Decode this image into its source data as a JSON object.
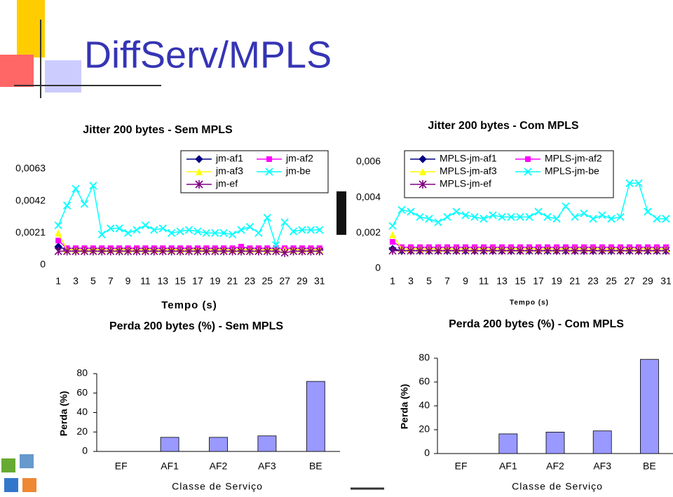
{
  "title": "DiffServ/MPLS",
  "chart_data": [
    {
      "type": "line",
      "title": "Jitter 200 bytes - Sem MPLS",
      "x_label": "Tempo (s)",
      "categories": [
        1,
        null,
        3,
        null,
        5,
        null,
        7,
        null,
        9,
        null,
        11,
        null,
        13,
        null,
        15,
        null,
        17,
        null,
        19,
        null,
        21,
        null,
        23,
        null,
        25,
        null,
        27,
        null,
        29,
        null,
        31
      ],
      "ylim": [
        0,
        0.0063
      ],
      "yticks": [
        0,
        {
          "value": 0.0021,
          "label": "0,0021"
        },
        {
          "value": 0.0042,
          "label": "0,0042"
        },
        {
          "value": 0.0063,
          "label": "0,0063"
        }
      ],
      "series": [
        {
          "name": "jm-af1",
          "color": "#000080",
          "marker": "diamond",
          "values": [
            0.0012,
            0.001,
            0.001,
            0.001,
            0.001,
            0.001,
            0.001,
            0.001,
            0.001,
            0.001,
            0.001,
            0.001,
            0.001,
            0.001,
            0.001,
            0.001,
            0.001,
            0.001,
            0.001,
            0.001,
            0.001,
            0.001,
            0.001,
            0.001,
            0.001,
            0.001,
            0.001,
            0.001,
            0.001,
            0.001,
            0.001
          ]
        },
        {
          "name": "jm-af2",
          "color": "#ff00ff",
          "marker": "square",
          "values": [
            0.0016,
            0.0011,
            0.0011,
            0.0011,
            0.0011,
            0.0011,
            0.0011,
            0.0011,
            0.0011,
            0.0011,
            0.0011,
            0.0011,
            0.0011,
            0.0011,
            0.0011,
            0.0011,
            0.0011,
            0.0011,
            0.0011,
            0.0011,
            0.0011,
            0.0012,
            0.0011,
            0.0011,
            0.0011,
            0.0011,
            0.0011,
            0.0011,
            0.0011,
            0.0011,
            0.0011
          ]
        },
        {
          "name": "jm-af3",
          "color": "#ffff00",
          "marker": "triangle",
          "values": [
            0.0021,
            0.001,
            0.001,
            0.001,
            0.001,
            0.001,
            0.001,
            0.001,
            0.001,
            0.001,
            0.001,
            0.001,
            0.001,
            0.001,
            0.001,
            0.001,
            0.001,
            0.001,
            0.001,
            0.001,
            0.001,
            0.001,
            0.001,
            0.001,
            0.001,
            0.001,
            0.001,
            0.001,
            0.001,
            0.001,
            0.001
          ]
        },
        {
          "name": "jm-be",
          "color": "#00ffff",
          "marker": "x",
          "values": [
            0.0026,
            0.0039,
            0.005,
            0.004,
            0.0052,
            0.002,
            0.0024,
            0.0024,
            0.0021,
            0.0023,
            0.0026,
            0.0023,
            0.0024,
            0.0021,
            0.0022,
            0.0023,
            0.0022,
            0.0021,
            0.0021,
            0.0021,
            0.002,
            0.0023,
            0.0025,
            0.0021,
            0.0031,
            0.0013,
            0.0028,
            0.0022,
            0.0023,
            0.0023,
            0.0023
          ]
        },
        {
          "name": "jm-ef",
          "color": "#800080",
          "marker": "star",
          "values": [
            0.0009,
            0.0009,
            0.0009,
            0.0009,
            0.0009,
            0.0009,
            0.0009,
            0.0009,
            0.0009,
            0.0009,
            0.0009,
            0.0009,
            0.0009,
            0.0009,
            0.0009,
            0.0009,
            0.0009,
            0.0009,
            0.0009,
            0.0009,
            0.0009,
            0.0009,
            0.0009,
            0.0009,
            0.0009,
            0.0009,
            0.0008,
            0.0009,
            0.0009,
            0.0009,
            0.0009
          ]
        }
      ]
    },
    {
      "type": "line",
      "title": "Jitter 200 bytes - Com MPLS",
      "x_label": "Tempo (s)",
      "categories": [
        1,
        null,
        3,
        null,
        5,
        null,
        7,
        null,
        9,
        null,
        11,
        null,
        13,
        null,
        15,
        null,
        17,
        null,
        19,
        null,
        21,
        null,
        23,
        null,
        25,
        null,
        27,
        null,
        29,
        null,
        31
      ],
      "ylim": [
        0,
        0.006
      ],
      "yticks": [
        0,
        {
          "value": 0.002,
          "label": "0,002"
        },
        {
          "value": 0.004,
          "label": "0,004"
        },
        {
          "value": 0.006,
          "label": "0,006"
        }
      ],
      "series": [
        {
          "name": "MPLS-jm-af1",
          "color": "#000080",
          "marker": "diamond",
          "values": [
            0.0011,
            0.001,
            0.001,
            0.001,
            0.001,
            0.001,
            0.001,
            0.001,
            0.001,
            0.001,
            0.001,
            0.001,
            0.001,
            0.001,
            0.001,
            0.001,
            0.001,
            0.001,
            0.001,
            0.001,
            0.001,
            0.001,
            0.001,
            0.001,
            0.001,
            0.001,
            0.001,
            0.001,
            0.001,
            0.001,
            0.001
          ]
        },
        {
          "name": "MPLS-jm-af2",
          "color": "#ff00ff",
          "marker": "square",
          "values": [
            0.0015,
            0.0012,
            0.0012,
            0.0012,
            0.0012,
            0.0012,
            0.0012,
            0.0012,
            0.0012,
            0.0012,
            0.0012,
            0.0012,
            0.0012,
            0.0012,
            0.0012,
            0.0012,
            0.0012,
            0.0012,
            0.0012,
            0.0012,
            0.0012,
            0.0012,
            0.0012,
            0.0012,
            0.0012,
            0.0012,
            0.0012,
            0.0012,
            0.0012,
            0.0012,
            0.0012
          ]
        },
        {
          "name": "MPLS-jm-af3",
          "color": "#ffff00",
          "marker": "triangle",
          "values": [
            0.0019,
            0.0011,
            0.0011,
            0.0011,
            0.0011,
            0.0011,
            0.0011,
            0.0011,
            0.0011,
            0.0011,
            0.0011,
            0.0011,
            0.0011,
            0.0011,
            0.0011,
            0.0011,
            0.0011,
            0.0011,
            0.0011,
            0.0011,
            0.0011,
            0.0011,
            0.0011,
            0.0011,
            0.0011,
            0.0011,
            0.0011,
            0.0011,
            0.0011,
            0.0011,
            0.0011
          ]
        },
        {
          "name": "MPLS-jm-be",
          "color": "#00ffff",
          "marker": "x",
          "values": [
            0.0024,
            0.0033,
            0.0032,
            0.0029,
            0.0028,
            0.0026,
            0.0029,
            0.0032,
            0.003,
            0.0029,
            0.0028,
            0.003,
            0.0029,
            0.0029,
            0.0029,
            0.0029,
            0.0032,
            0.0029,
            0.0028,
            0.0035,
            0.0029,
            0.0031,
            0.0028,
            0.003,
            0.0028,
            0.0029,
            0.0048,
            0.0048,
            0.0032,
            0.0028,
            0.0028
          ]
        },
        {
          "name": "MPLS-jm-ef",
          "color": "#800080",
          "marker": "star",
          "values": [
            0.001,
            0.001,
            0.001,
            0.001,
            0.001,
            0.001,
            0.001,
            0.001,
            0.001,
            0.001,
            0.001,
            0.001,
            0.001,
            0.001,
            0.001,
            0.001,
            0.001,
            0.001,
            0.001,
            0.001,
            0.001,
            0.001,
            0.001,
            0.001,
            0.001,
            0.001,
            0.001,
            0.001,
            0.001,
            0.001,
            0.001
          ]
        }
      ]
    },
    {
      "type": "bar",
      "title": "Perda 200 bytes (%) - Sem MPLS",
      "x_label": "Classe de Serviço",
      "y_label": "Perda (%)",
      "categories": [
        "EF",
        "AF1",
        "AF2",
        "AF3",
        "BE"
      ],
      "values": [
        0,
        14.5,
        14.5,
        16,
        72
      ],
      "color": "#9999ff",
      "ylim": [
        0,
        80
      ],
      "yticks": [
        0,
        20,
        40,
        60,
        80
      ]
    },
    {
      "type": "bar",
      "title": "Perda 200 bytes (%) - Com MPLS",
      "x_label": "Classe de Serviço",
      "y_label": "Perda (%)",
      "categories": [
        "EF",
        "AF1",
        "AF2",
        "AF3",
        "BE"
      ],
      "values": [
        0,
        16.5,
        18,
        19,
        79
      ],
      "color": "#9999ff",
      "ylim": [
        0,
        80
      ],
      "yticks": [
        0,
        20,
        40,
        60,
        80
      ]
    }
  ]
}
